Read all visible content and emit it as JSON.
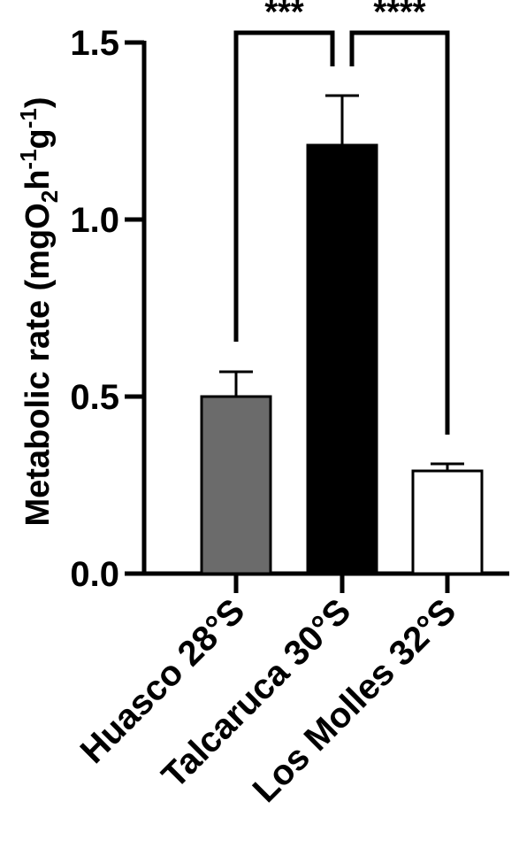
{
  "chart_data": {
    "type": "bar",
    "ylabel_main": "Metabolic rate (mgO",
    "ylabel_sub": "2",
    "ylabel_h": "h",
    "ylabel_sup1": "-1",
    "ylabel_g": "g",
    "ylabel_sup2": "-1",
    "ylabel_close": ")",
    "ylim": [
      0,
      1.5
    ],
    "yticks": [
      "0.0",
      "0.5",
      "1.0",
      "1.5"
    ],
    "categories": [
      "Huasco 28°S",
      "Talcaruca 30°S",
      "Los Molles 32°S"
    ],
    "values": [
      0.5,
      1.21,
      0.29
    ],
    "errors": [
      0.07,
      0.14,
      0.02
    ],
    "bar_colors": [
      "#6b6b6b",
      "#000000",
      "#ffffff"
    ],
    "significance": [
      {
        "from": 0,
        "to": 1,
        "label": "***"
      },
      {
        "from": 1,
        "to": 2,
        "label": "****"
      }
    ],
    "grid": false,
    "legend": "none"
  }
}
